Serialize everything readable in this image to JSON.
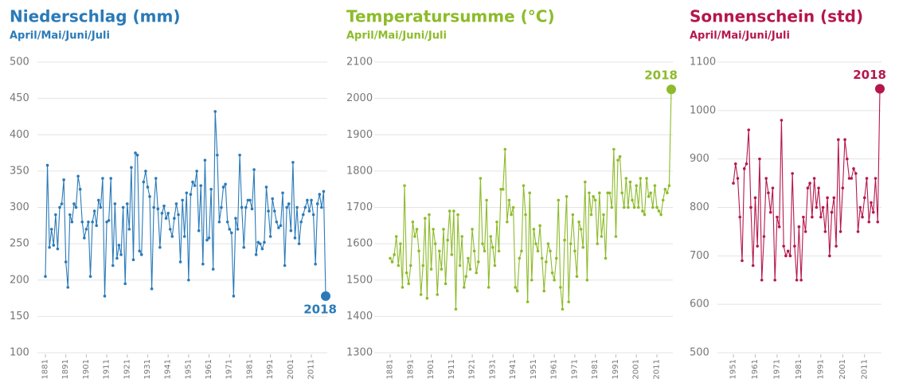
{
  "chart_data": [
    {
      "type": "line",
      "title": "Niederschlag (mm)",
      "subtitle": "April/Mai/Juni/Juli",
      "color": "#2a7ab8",
      "annotation": "2018",
      "x": [
        1881,
        1882,
        1883,
        1884,
        1885,
        1886,
        1887,
        1888,
        1889,
        1890,
        1891,
        1892,
        1893,
        1894,
        1895,
        1896,
        1897,
        1898,
        1899,
        1900,
        1901,
        1902,
        1903,
        1904,
        1905,
        1906,
        1907,
        1908,
        1909,
        1910,
        1911,
        1912,
        1913,
        1914,
        1915,
        1916,
        1917,
        1918,
        1919,
        1920,
        1921,
        1922,
        1923,
        1924,
        1925,
        1926,
        1927,
        1928,
        1929,
        1930,
        1931,
        1932,
        1933,
        1934,
        1935,
        1936,
        1937,
        1938,
        1939,
        1940,
        1941,
        1942,
        1943,
        1944,
        1945,
        1946,
        1947,
        1948,
        1949,
        1950,
        1951,
        1952,
        1953,
        1954,
        1955,
        1956,
        1957,
        1958,
        1959,
        1960,
        1961,
        1962,
        1963,
        1964,
        1965,
        1966,
        1967,
        1968,
        1969,
        1970,
        1971,
        1972,
        1973,
        1974,
        1975,
        1976,
        1977,
        1978,
        1979,
        1980,
        1981,
        1982,
        1983,
        1984,
        1985,
        1986,
        1987,
        1988,
        1989,
        1990,
        1991,
        1992,
        1993,
        1994,
        1995,
        1996,
        1997,
        1998,
        1999,
        2000,
        2001,
        2002,
        2003,
        2004,
        2005,
        2006,
        2007,
        2008,
        2009,
        2010,
        2011,
        2012,
        2013,
        2014,
        2015,
        2016,
        2017,
        2018
      ],
      "values": [
        205,
        358,
        245,
        270,
        248,
        290,
        243,
        300,
        305,
        338,
        225,
        190,
        290,
        280,
        305,
        300,
        343,
        325,
        280,
        258,
        270,
        280,
        205,
        280,
        295,
        275,
        310,
        300,
        340,
        178,
        280,
        282,
        340,
        220,
        305,
        230,
        248,
        235,
        300,
        195,
        305,
        270,
        355,
        228,
        375,
        372,
        240,
        235,
        335,
        350,
        328,
        315,
        188,
        300,
        340,
        298,
        245,
        292,
        302,
        285,
        292,
        270,
        260,
        285,
        305,
        290,
        225,
        310,
        260,
        320,
        200,
        318,
        335,
        330,
        350,
        268,
        330,
        222,
        365,
        255,
        258,
        325,
        215,
        432,
        372,
        280,
        300,
        328,
        332,
        280,
        270,
        265,
        178,
        285,
        270,
        372,
        300,
        245,
        300,
        310,
        310,
        298,
        352,
        235,
        252,
        250,
        243,
        252,
        328,
        295,
        260,
        312,
        295,
        280,
        272,
        275,
        320,
        220,
        300,
        305,
        268,
        362,
        258,
        300,
        250,
        280,
        290,
        300,
        310,
        295,
        310,
        290,
        222,
        305,
        318,
        300,
        322,
        178
      ],
      "xlim": [
        1881,
        2018
      ],
      "xticks": [
        1881,
        1891,
        1901,
        1911,
        1921,
        1931,
        1941,
        1951,
        1961,
        1971,
        1981,
        1991,
        2001,
        2011
      ],
      "ylim": [
        100,
        500
      ],
      "yticks": [
        100,
        150,
        200,
        250,
        300,
        350,
        400,
        450,
        500
      ],
      "grid": true
    },
    {
      "type": "line",
      "title": "Temperatursumme (°C)",
      "subtitle": "April/Mai/Juni/Juli",
      "color": "#8dbb2a",
      "annotation": "2018",
      "x": [
        1881,
        1882,
        1883,
        1884,
        1885,
        1886,
        1887,
        1888,
        1889,
        1890,
        1891,
        1892,
        1893,
        1894,
        1895,
        1896,
        1897,
        1898,
        1899,
        1900,
        1901,
        1902,
        1903,
        1904,
        1905,
        1906,
        1907,
        1908,
        1909,
        1910,
        1911,
        1912,
        1913,
        1914,
        1915,
        1916,
        1917,
        1918,
        1919,
        1920,
        1921,
        1922,
        1923,
        1924,
        1925,
        1926,
        1927,
        1928,
        1929,
        1930,
        1931,
        1932,
        1933,
        1934,
        1935,
        1936,
        1937,
        1938,
        1939,
        1940,
        1941,
        1942,
        1943,
        1944,
        1945,
        1946,
        1947,
        1948,
        1949,
        1950,
        1951,
        1952,
        1953,
        1954,
        1955,
        1956,
        1957,
        1958,
        1959,
        1960,
        1961,
        1962,
        1963,
        1964,
        1965,
        1966,
        1967,
        1968,
        1969,
        1970,
        1971,
        1972,
        1973,
        1974,
        1975,
        1976,
        1977,
        1978,
        1979,
        1980,
        1981,
        1982,
        1983,
        1984,
        1985,
        1986,
        1987,
        1988,
        1989,
        1990,
        1991,
        1992,
        1993,
        1994,
        1995,
        1996,
        1997,
        1998,
        1999,
        2000,
        2001,
        2002,
        2003,
        2004,
        2005,
        2006,
        2007,
        2008,
        2009,
        2010,
        2011,
        2012,
        2013,
        2014,
        2015,
        2016,
        2017,
        2018
      ],
      "values": [
        1560,
        1550,
        1570,
        1620,
        1540,
        1600,
        1480,
        1760,
        1520,
        1490,
        1540,
        1660,
        1620,
        1640,
        1580,
        1460,
        1540,
        1670,
        1450,
        1680,
        1530,
        1640,
        1600,
        1460,
        1580,
        1530,
        1640,
        1490,
        1610,
        1690,
        1570,
        1690,
        1420,
        1680,
        1540,
        1620,
        1480,
        1510,
        1560,
        1530,
        1640,
        1580,
        1520,
        1550,
        1780,
        1600,
        1580,
        1720,
        1480,
        1620,
        1590,
        1540,
        1660,
        1580,
        1750,
        1750,
        1860,
        1660,
        1720,
        1680,
        1700,
        1480,
        1470,
        1560,
        1580,
        1760,
        1680,
        1440,
        1740,
        1500,
        1640,
        1600,
        1580,
        1650,
        1560,
        1470,
        1550,
        1600,
        1580,
        1520,
        1500,
        1560,
        1720,
        1480,
        1420,
        1610,
        1730,
        1440,
        1600,
        1680,
        1580,
        1510,
        1660,
        1640,
        1590,
        1770,
        1500,
        1740,
        1680,
        1730,
        1720,
        1600,
        1740,
        1620,
        1680,
        1560,
        1740,
        1740,
        1700,
        1860,
        1620,
        1830,
        1840,
        1740,
        1700,
        1780,
        1700,
        1770,
        1720,
        1700,
        1760,
        1700,
        1780,
        1690,
        1680,
        1780,
        1730,
        1740,
        1700,
        1760,
        1700,
        1690,
        1680,
        1720,
        1750,
        1740,
        1760,
        2025
      ],
      "xlim": [
        1881,
        2018
      ],
      "xticks": [
        1881,
        1891,
        1901,
        1911,
        1921,
        1931,
        1941,
        1951,
        1961,
        1971,
        1981,
        1991,
        2001,
        2011
      ],
      "ylim": [
        1300,
        2100
      ],
      "yticks": [
        1300,
        1400,
        1500,
        1600,
        1700,
        1800,
        1900,
        2000,
        2100
      ],
      "grid": true
    },
    {
      "type": "line",
      "title": "Sonnenschein (std)",
      "subtitle": "April/Mai/Juni/Juli",
      "color": "#b5174b",
      "annotation": "2018",
      "x": [
        1951,
        1952,
        1953,
        1954,
        1955,
        1956,
        1957,
        1958,
        1959,
        1960,
        1961,
        1962,
        1963,
        1964,
        1965,
        1966,
        1967,
        1968,
        1969,
        1970,
        1971,
        1972,
        1973,
        1974,
        1975,
        1976,
        1977,
        1978,
        1979,
        1980,
        1981,
        1982,
        1983,
        1984,
        1985,
        1986,
        1987,
        1988,
        1989,
        1990,
        1991,
        1992,
        1993,
        1994,
        1995,
        1996,
        1997,
        1998,
        1999,
        2000,
        2001,
        2002,
        2003,
        2004,
        2005,
        2006,
        2007,
        2008,
        2009,
        2010,
        2011,
        2012,
        2013,
        2014,
        2015,
        2016,
        2017,
        2018
      ],
      "values": [
        850,
        890,
        860,
        780,
        690,
        880,
        890,
        960,
        800,
        680,
        820,
        720,
        900,
        650,
        740,
        860,
        830,
        790,
        840,
        650,
        780,
        760,
        980,
        720,
        700,
        710,
        700,
        870,
        720,
        650,
        760,
        650,
        780,
        750,
        840,
        850,
        780,
        860,
        800,
        840,
        780,
        800,
        750,
        820,
        700,
        790,
        820,
        720,
        940,
        750,
        840,
        940,
        900,
        860,
        860,
        880,
        870,
        750,
        800,
        780,
        820,
        860,
        770,
        810,
        790,
        860,
        770,
        1045
      ],
      "xlim": [
        1951,
        2018
      ],
      "xticks": [
        1951,
        1961,
        1971,
        1981,
        1991,
        2001,
        2011
      ],
      "ylim": [
        500,
        1100
      ],
      "yticks": [
        500,
        600,
        700,
        800,
        900,
        1000,
        1100
      ],
      "grid": true
    }
  ]
}
